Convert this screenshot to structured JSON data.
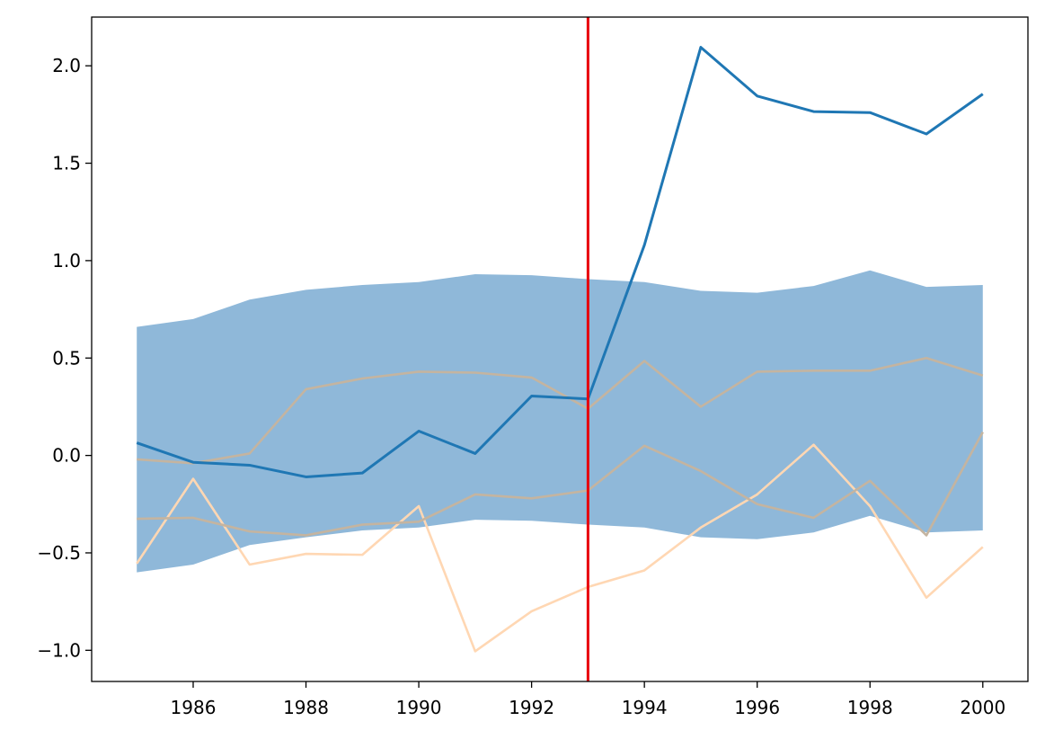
{
  "chart_data": {
    "type": "line",
    "title": "",
    "xlabel": "",
    "ylabel": "",
    "xlim": [
      1984.2,
      2000.8
    ],
    "ylim": [
      -1.16,
      2.25
    ],
    "grid": false,
    "x": [
      1985,
      1986,
      1987,
      1988,
      1989,
      1990,
      1991,
      1992,
      1993,
      1994,
      1995,
      1996,
      1997,
      1998,
      1999,
      2000
    ],
    "x_ticks": [
      1986,
      1988,
      1990,
      1992,
      1994,
      1996,
      1998,
      2000
    ],
    "x_tick_labels": [
      "1986",
      "1988",
      "1990",
      "1992",
      "1994",
      "1996",
      "1998",
      "2000"
    ],
    "y_ticks": [
      -1.0,
      -0.5,
      0.0,
      0.5,
      1.0,
      1.5,
      2.0
    ],
    "y_tick_labels": [
      "−1.0",
      "−0.5",
      "0.0",
      "0.5",
      "1.0",
      "1.5",
      "2.0"
    ],
    "band": {
      "color": "#8fb8d9",
      "upper": [
        0.66,
        0.7,
        0.8,
        0.85,
        0.875,
        0.89,
        0.93,
        0.925,
        0.905,
        0.89,
        0.845,
        0.835,
        0.87,
        0.95,
        0.865,
        0.875
      ],
      "lower": [
        -0.6,
        -0.56,
        -0.46,
        -0.42,
        -0.385,
        -0.37,
        -0.33,
        -0.335,
        -0.355,
        -0.37,
        -0.42,
        -0.43,
        -0.395,
        -0.31,
        -0.395,
        -0.385
      ]
    },
    "series": [
      {
        "color": "#1f77b4",
        "values": [
          0.065,
          -0.035,
          -0.05,
          -0.11,
          -0.09,
          0.125,
          0.01,
          0.305,
          0.29,
          1.08,
          2.095,
          1.845,
          1.765,
          1.76,
          1.65,
          1.855
        ]
      },
      {
        "color": "#ffd7b3",
        "values": [
          -0.555,
          -0.12,
          -0.56,
          -0.505,
          -0.51,
          -0.26,
          -1.005,
          -0.8,
          -0.675,
          -0.59,
          -0.37,
          -0.2,
          0.055,
          -0.26,
          -0.73,
          -0.47
        ]
      },
      {
        "color": "#c4b4a0",
        "values": [
          -0.02,
          -0.04,
          0.01,
          0.34,
          0.395,
          0.43,
          0.425,
          0.4,
          0.24,
          0.485,
          0.25,
          0.43,
          0.435,
          0.435,
          0.5,
          0.41
        ]
      },
      {
        "color": "#c4b4a0",
        "values": [
          -0.325,
          -0.32,
          -0.39,
          -0.41,
          -0.355,
          -0.34,
          -0.2,
          -0.22,
          -0.18,
          0.05,
          -0.08,
          -0.25,
          -0.32,
          -0.13,
          -0.41,
          0.12
        ]
      }
    ],
    "vline": {
      "x": 1993,
      "color": "#e8000b"
    }
  }
}
